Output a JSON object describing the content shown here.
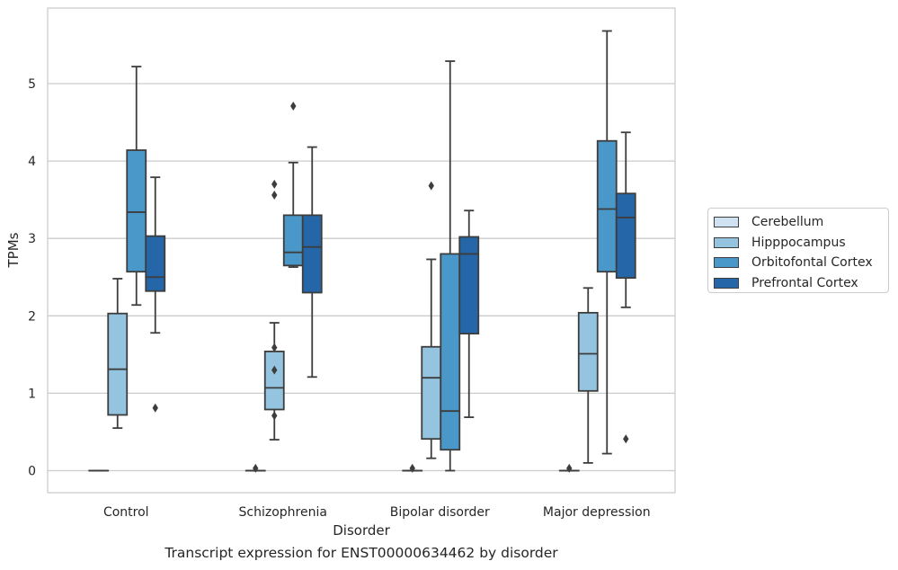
{
  "caption": "Transcript expression for ENST00000634462 by disorder",
  "chart_data": {
    "type": "box",
    "xlabel": "Disorder",
    "ylabel": "TPMs",
    "ylim": [
      -0.28,
      5.97
    ],
    "yticks": [
      0,
      1,
      2,
      3,
      4,
      5
    ],
    "grid": "horizontal",
    "legend_position": "right",
    "categories": [
      "Control",
      "Schizophrenia",
      "Bipolar disorder",
      "Major depression"
    ],
    "series": [
      {
        "name": "Cerebellum",
        "color": "#d0e1f2",
        "boxes": [
          {
            "min": 0,
            "q1": 0,
            "median": 0,
            "q3": 0,
            "max": 0,
            "outliers": []
          },
          {
            "min": 0,
            "q1": 0,
            "median": 0,
            "q3": 0,
            "max": 0,
            "outliers": [
              0.03
            ]
          },
          {
            "min": 0,
            "q1": 0,
            "median": 0,
            "q3": 0,
            "max": 0,
            "outliers": [
              0.03
            ]
          },
          {
            "min": 0,
            "q1": 0,
            "median": 0,
            "q3": 0,
            "max": 0,
            "outliers": [
              0.03
            ]
          }
        ]
      },
      {
        "name": "Hipppocampus",
        "color": "#94c4df",
        "boxes": [
          {
            "min": 0.55,
            "q1": 0.72,
            "median": 1.31,
            "q3": 2.03,
            "max": 2.48,
            "outliers": []
          },
          {
            "min": 0.4,
            "q1": 0.79,
            "median": 1.07,
            "q3": 1.54,
            "max": 1.91,
            "outliers": [
              3.7,
              3.56,
              1.59,
              1.3,
              0.71
            ]
          },
          {
            "min": 0.16,
            "q1": 0.41,
            "median": 1.2,
            "q3": 1.6,
            "max": 2.73,
            "outliers": [
              3.68
            ]
          },
          {
            "min": 0.1,
            "q1": 1.03,
            "median": 1.51,
            "q3": 2.04,
            "max": 2.36,
            "outliers": []
          }
        ]
      },
      {
        "name": "Orbitofontal Cortex",
        "color": "#4a98c9",
        "boxes": [
          {
            "min": 2.14,
            "q1": 2.57,
            "median": 3.34,
            "q3": 4.14,
            "max": 5.22,
            "outliers": []
          },
          {
            "min": 2.63,
            "q1": 2.65,
            "median": 2.82,
            "q3": 3.3,
            "max": 3.98,
            "outliers": [
              4.71
            ]
          },
          {
            "min": 0,
            "q1": 0.27,
            "median": 0.77,
            "q3": 2.8,
            "max": 5.29,
            "outliers": []
          },
          {
            "min": 0.22,
            "q1": 2.57,
            "median": 3.38,
            "q3": 4.26,
            "max": 5.68,
            "outliers": []
          }
        ]
      },
      {
        "name": "Prefrontal Cortex",
        "color": "#2466a8",
        "boxes": [
          {
            "min": 1.78,
            "q1": 2.32,
            "median": 2.5,
            "q3": 3.03,
            "max": 3.79,
            "outliers": [
              0.81
            ]
          },
          {
            "min": 1.21,
            "q1": 2.3,
            "median": 2.89,
            "q3": 3.3,
            "max": 4.18,
            "outliers": []
          },
          {
            "min": 0.69,
            "q1": 1.77,
            "median": 2.8,
            "q3": 3.02,
            "max": 3.36,
            "outliers": []
          },
          {
            "min": 2.11,
            "q1": 2.49,
            "median": 3.27,
            "q3": 3.58,
            "max": 4.37,
            "outliers": [
              0.41
            ]
          }
        ]
      }
    ]
  }
}
